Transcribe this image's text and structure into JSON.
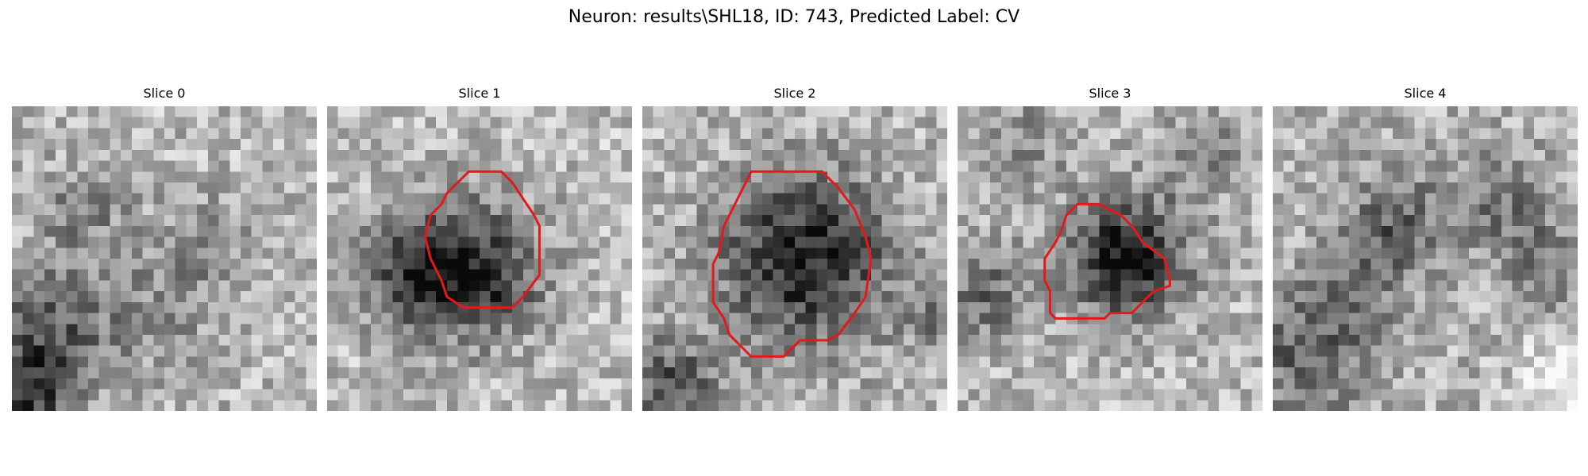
{
  "figure": {
    "title": "Neuron: results\\SHL18, ID: 743, Predicted Label: CV"
  },
  "slices": [
    {
      "label": "Slice 0",
      "has_contour": false
    },
    {
      "label": "Slice 1",
      "has_contour": true
    },
    {
      "label": "Slice 2",
      "has_contour": true
    },
    {
      "label": "Slice 3",
      "has_contour": true
    },
    {
      "label": "Slice 4",
      "has_contour": false
    }
  ],
  "colors": {
    "contour": "#e31a1c",
    "background": "#ffffff"
  },
  "colormap": "grayscale"
}
